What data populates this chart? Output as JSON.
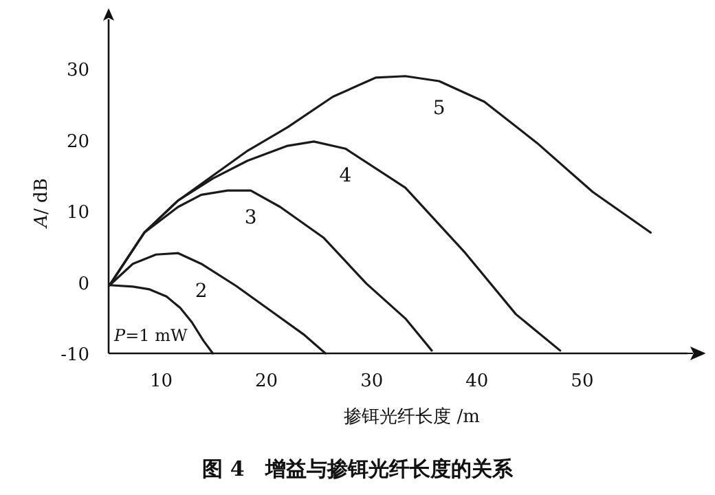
{
  "chart_data": {
    "type": "line",
    "title": "图 4　增益与掺铒光纤长度的关系",
    "xlabel": "掺铒光纤长度 /m",
    "ylabel": "*A*/ dB",
    "xlim": [
      5,
      60
    ],
    "ylim": [
      -10,
      37
    ],
    "xticks": [
      10,
      20,
      30,
      40,
      50
    ],
    "yticks": [
      -10,
      0,
      10,
      20,
      30
    ],
    "grid": false,
    "legend": false,
    "marker": "none",
    "line_style": "solid",
    "series": [
      {
        "name": "*P*=1 mW",
        "color": "#1a1a1a",
        "x": [
          5.1,
          7.3,
          8.9,
          10.5,
          11.8,
          12.9,
          14.0,
          14.9
        ],
        "values": [
          -0.4,
          -0.6,
          -1.0,
          -2.0,
          -3.6,
          -5.6,
          -8.2,
          -10
        ]
      },
      {
        "name": "2",
        "color": "#1a1a1a",
        "x": [
          5.1,
          7.3,
          9.5,
          11.6,
          13.8,
          17.1,
          20.4,
          23.5,
          25.6
        ],
        "values": [
          -0.4,
          2.6,
          3.9,
          4.1,
          2.6,
          -0.5,
          -4.0,
          -7.3,
          -10
        ]
      },
      {
        "name": "3",
        "color": "#1a1a1a",
        "x": [
          5.1,
          8.4,
          11.6,
          13.8,
          16.3,
          18.5,
          21.3,
          25.4,
          29.5,
          33.2,
          35.7
        ],
        "values": [
          -0.4,
          7.0,
          10.6,
          12.3,
          12.9,
          12.9,
          10.6,
          6.3,
          -0.2,
          -5.1,
          -9.6
        ]
      },
      {
        "name": "4",
        "color": "#1a1a1a",
        "x": [
          5.1,
          8.4,
          11.6,
          14.9,
          18.2,
          22.0,
          24.5,
          27.5,
          33.2,
          38.9,
          43.7,
          47.9
        ],
        "values": [
          -0.4,
          7.0,
          11.5,
          14.6,
          17.1,
          19.2,
          19.8,
          18.8,
          13.3,
          4.1,
          -4.5,
          -9.6
        ]
      },
      {
        "name": "5",
        "color": "#1a1a1a",
        "x": [
          5.1,
          8.4,
          11.6,
          14.9,
          18.2,
          22.0,
          26.3,
          30.4,
          33.2,
          36.4,
          40.7,
          45.7,
          51.0,
          56.5
        ],
        "values": [
          -0.4,
          7.0,
          11.5,
          15.0,
          18.5,
          21.8,
          26.1,
          28.8,
          29.0,
          28.3,
          25.4,
          19.6,
          12.7,
          7.0
        ]
      }
    ]
  }
}
